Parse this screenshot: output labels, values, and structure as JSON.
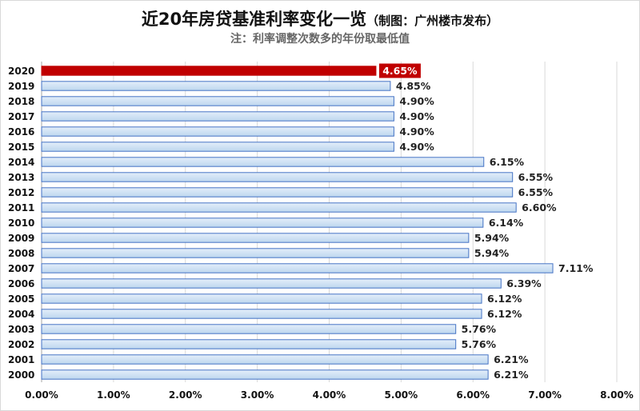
{
  "chart_data": {
    "type": "bar",
    "orientation": "horizontal",
    "title": "近20年房贷基准利率变化一览",
    "title_note": "（制图：广州楼市发布）",
    "subtitle": "注：利率调整次数多的年份取最低值",
    "categories": [
      "2020",
      "2019",
      "2018",
      "2017",
      "2016",
      "2015",
      "2014",
      "2013",
      "2012",
      "2011",
      "2010",
      "2009",
      "2008",
      "2007",
      "2006",
      "2005",
      "2004",
      "2003",
      "2002",
      "2001",
      "2000"
    ],
    "values": [
      4.65,
      4.85,
      4.9,
      4.9,
      4.9,
      4.9,
      6.15,
      6.55,
      6.55,
      6.6,
      6.14,
      5.94,
      5.94,
      7.11,
      6.39,
      6.12,
      6.12,
      5.76,
      5.76,
      6.21,
      6.21
    ],
    "value_labels": [
      "4.65%",
      "4.85%",
      "4.90%",
      "4.90%",
      "4.90%",
      "4.90%",
      "6.15%",
      "6.55%",
      "6.55%",
      "6.60%",
      "6.14%",
      "5.94%",
      "5.94%",
      "7.11%",
      "6.39%",
      "6.12%",
      "6.12%",
      "5.76%",
      "5.76%",
      "6.21%",
      "6.21%"
    ],
    "highlight_index": 0,
    "x_ticks": [
      0,
      1,
      2,
      3,
      4,
      5,
      6,
      7,
      8
    ],
    "x_tick_labels": [
      "0.00%",
      "1.00%",
      "2.00%",
      "3.00%",
      "4.00%",
      "5.00%",
      "6.00%",
      "7.00%",
      "8.00%"
    ],
    "xlim": [
      0,
      8
    ],
    "grid": true,
    "colors": {
      "bar_fill": "#bdd7ee",
      "bar_stroke": "#4472c4",
      "highlight_fill": "#c00000",
      "highlight_stroke": "#c00000",
      "grid": "#d9d9d9",
      "axis": "#a6a6a6"
    }
  }
}
